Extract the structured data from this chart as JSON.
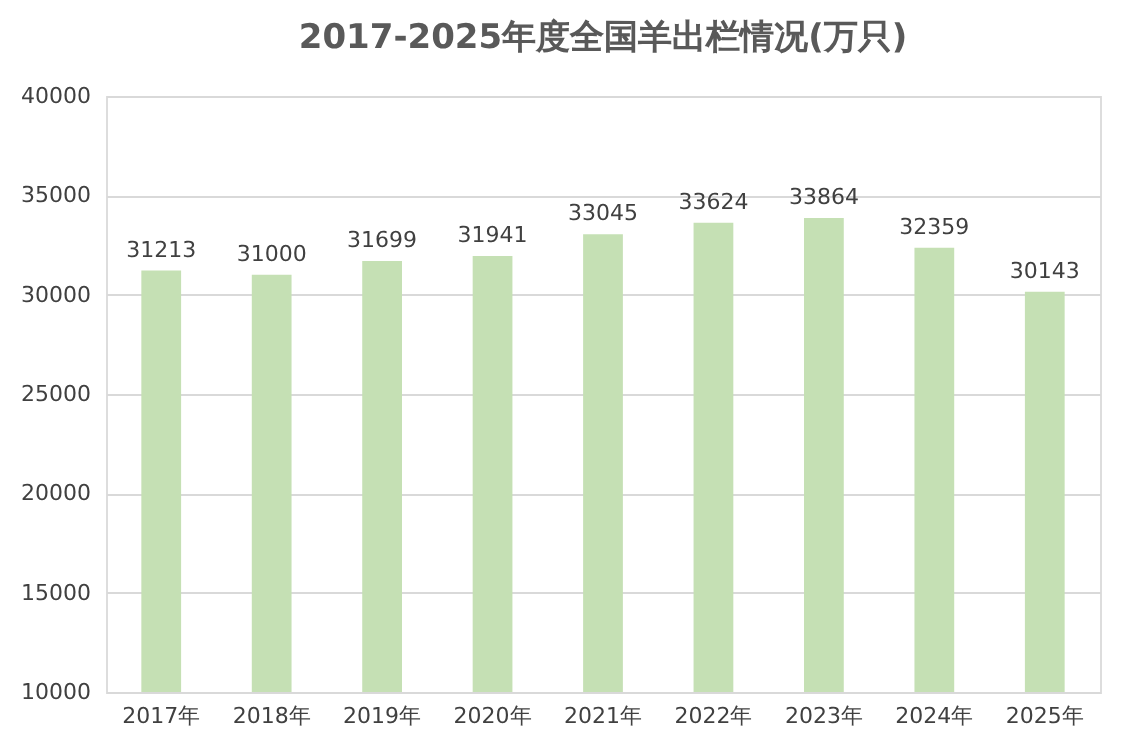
{
  "chart_data": {
    "type": "bar",
    "title": "2017-2025年度全国羊出栏情况(万只)",
    "categories": [
      "2017年",
      "2018年",
      "2019年",
      "2020年",
      "2021年",
      "2022年",
      "2023年",
      "2024年",
      "2025年"
    ],
    "values": [
      31213,
      31000,
      31699,
      31941,
      33045,
      33624,
      33864,
      32359,
      30143
    ],
    "color": "#c5e0b4",
    "ylim": [
      10000,
      40000
    ],
    "yticks": [
      10000,
      15000,
      20000,
      25000,
      30000,
      35000,
      40000
    ],
    "grid": "y",
    "data_labels": true
  }
}
